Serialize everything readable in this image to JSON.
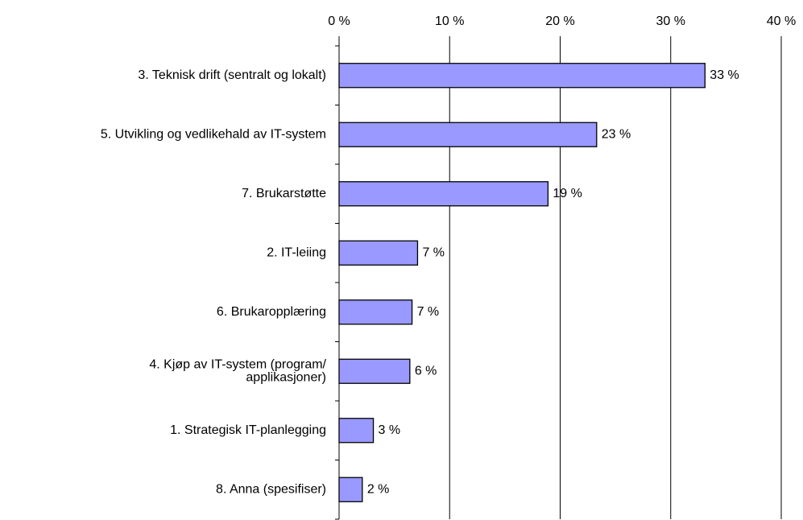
{
  "chart_data": {
    "type": "hbar",
    "categories": [
      "3. Teknisk drift (sentralt og lokalt)",
      "5. Utvikling og vedlikehald av IT-system",
      "7. Brukarstøtte",
      "2. IT-leiing",
      "6. Brukaropplæring",
      "4. Kjøp av IT-system (program/\napplikasjoner)",
      "1. Strategisk IT-planlegging",
      "8. Anna (spesifiser)"
    ],
    "values": [
      33.1,
      23.3,
      18.9,
      7.1,
      6.6,
      6.4,
      3.1,
      2.1
    ],
    "value_labels": [
      "33 %",
      "23 %",
      "19 %",
      "7 %",
      "7 %",
      "6 %",
      "3 %",
      "2 %"
    ],
    "color": "#9999ff",
    "xlim": [
      0,
      40
    ],
    "xticks": [
      {
        "value": 0,
        "label": "0 %"
      },
      {
        "value": 10,
        "label": "10 %"
      },
      {
        "value": 20,
        "label": "20 %"
      },
      {
        "value": 30,
        "label": "30 %"
      },
      {
        "value": 40,
        "label": "40 %"
      }
    ],
    "grid": true
  }
}
